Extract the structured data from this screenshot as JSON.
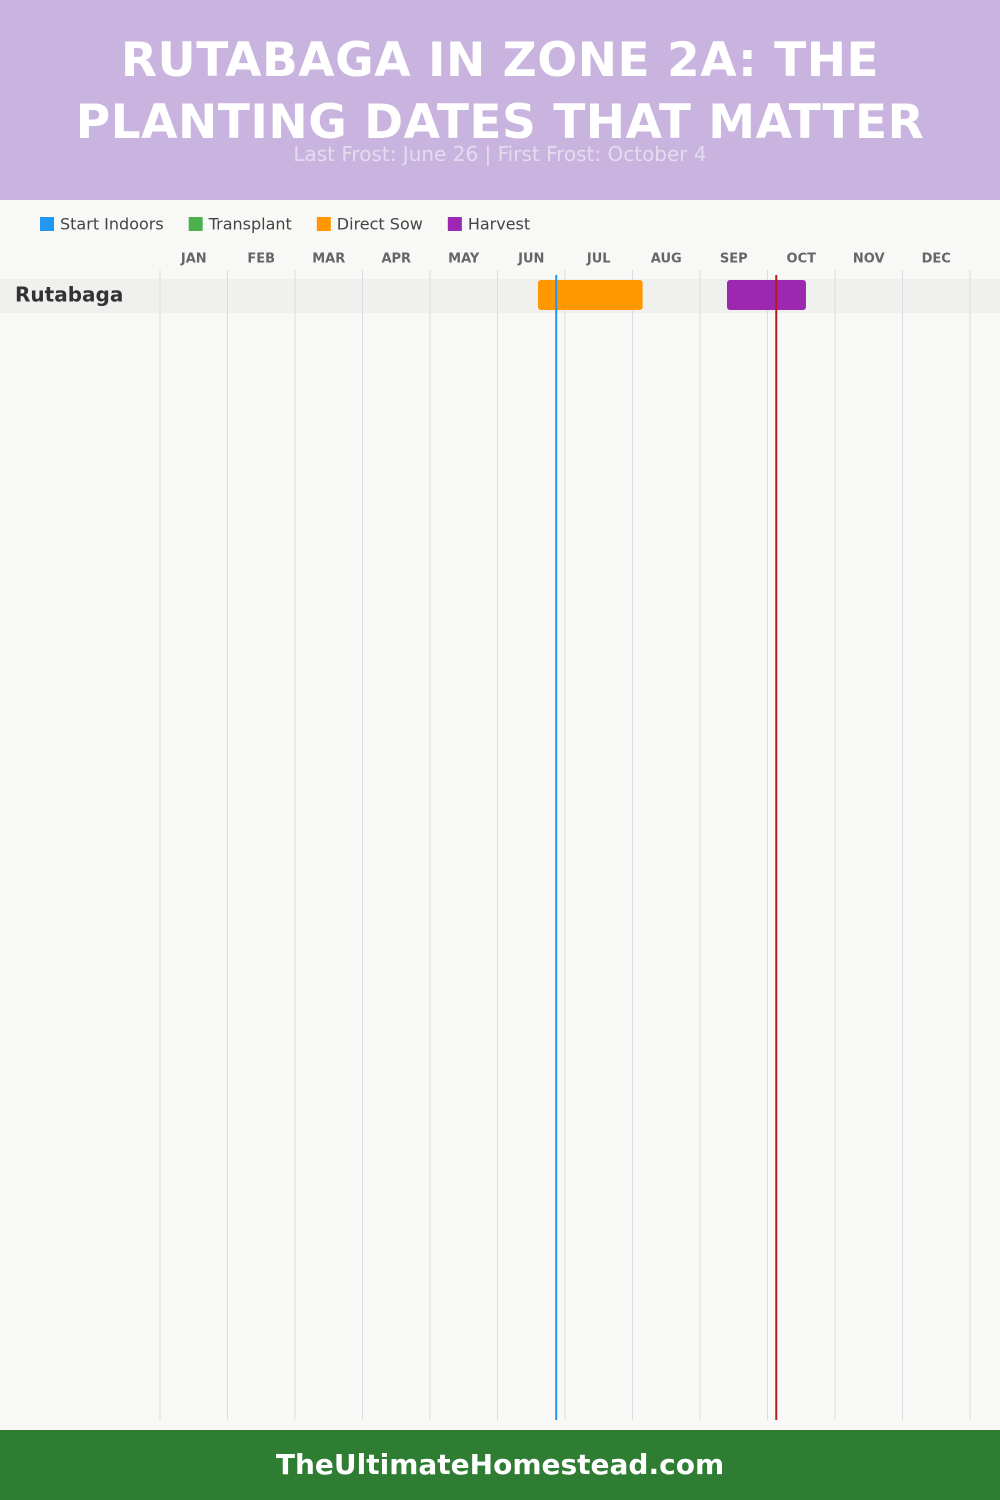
{
  "chart_data": {
    "type": "gantt",
    "title": "RUTABAGA IN ZONE 2A: THE PLANTING DATES THAT MATTER",
    "subtitle": "Last Frost: June 26 | First Frost: October 4",
    "months": [
      "JAN",
      "FEB",
      "MAR",
      "APR",
      "MAY",
      "JUN",
      "JUL",
      "AUG",
      "SEP",
      "OCT",
      "NOV",
      "DEC"
    ],
    "xlim": [
      0,
      12
    ],
    "grid": true,
    "categories": [
      "Rutabaga"
    ],
    "series": [
      {
        "name": "Start Indoors",
        "color": "#2196f3",
        "values": [
          null
        ]
      },
      {
        "name": "Transplant",
        "color": "#4caf50",
        "values": [
          null
        ]
      },
      {
        "name": "Direct Sow",
        "color": "#ff9800",
        "values": [
          [
            5.6,
            7.15
          ]
        ]
      },
      {
        "name": "Harvest",
        "color": "#9c27b0",
        "values": [
          [
            8.4,
            9.57
          ]
        ]
      }
    ],
    "markers": [
      {
        "value": 5.87,
        "color": "#2196f3"
      },
      {
        "value": 9.13,
        "color": "#b71c1c"
      }
    ]
  },
  "footer": "TheUltimateHomestead.com"
}
